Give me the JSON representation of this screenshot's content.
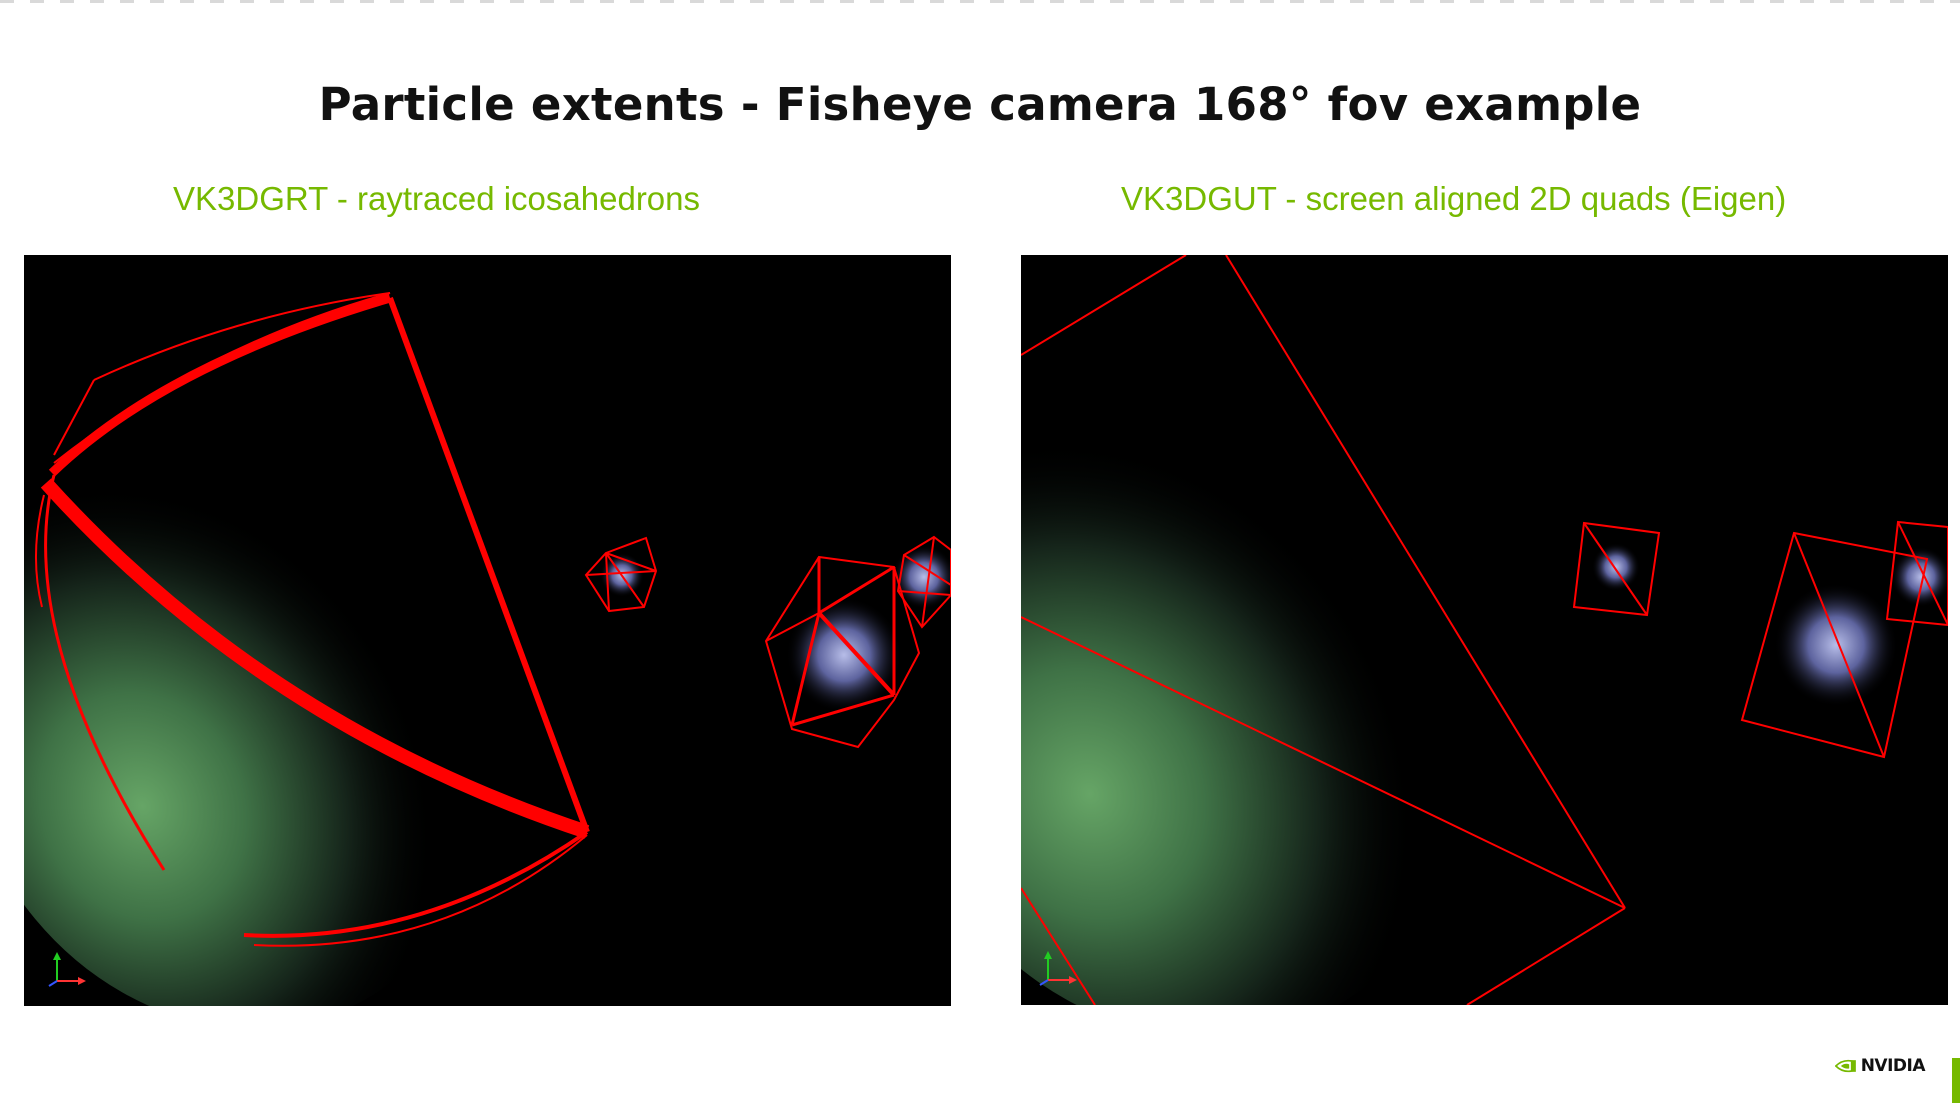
{
  "slide": {
    "title": "Particle extents - Fisheye camera 168° fov example",
    "left_caption": "VK3DGRT - raytraced icosahedrons",
    "right_caption": "VK3DGUT - screen aligned 2D quads (Eigen)",
    "logo_text": "NVIDIA"
  },
  "colors": {
    "accent_green": "#76b900",
    "wireframe_red": "#ff0000",
    "particle_green": "#5c9a5e",
    "particle_blue": "#8a8fd0",
    "background": "#000000"
  },
  "icons": {
    "axis_gizmo": "axis-gizmo-icon",
    "logo": "nvidia-eye-icon"
  }
}
